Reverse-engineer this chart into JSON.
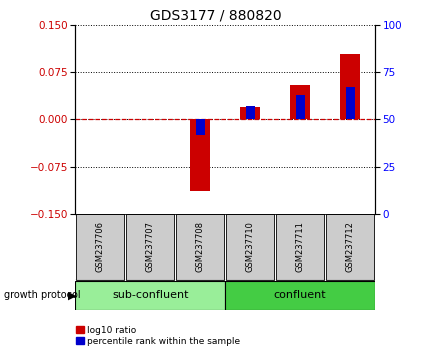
{
  "title": "GDS3177 / 880820",
  "samples": [
    "GSM237706",
    "GSM237707",
    "GSM237708",
    "GSM237710",
    "GSM237711",
    "GSM237712"
  ],
  "log10_ratio": [
    0.0,
    0.0,
    -0.113,
    0.02,
    0.055,
    0.103
  ],
  "percentile_rank": [
    50,
    50,
    42,
    57,
    63,
    67
  ],
  "ylim_left": [
    -0.15,
    0.15
  ],
  "ylim_right": [
    0,
    100
  ],
  "yticks_left": [
    -0.15,
    -0.075,
    0,
    0.075,
    0.15
  ],
  "yticks_right": [
    0,
    25,
    50,
    75,
    100
  ],
  "bar_color_red": "#cc0000",
  "bar_color_blue": "#0000cc",
  "zero_line_color": "#cc0000",
  "grid_color": "#000000",
  "plot_bg": "#ffffff",
  "sub_confluent_color": "#99ee99",
  "confluent_color": "#44cc44",
  "label_bg_color": "#cccccc",
  "bar_width": 0.4,
  "blue_bar_width": 0.18,
  "legend_red_label": "log10 ratio",
  "legend_blue_label": "percentile rank within the sample",
  "growth_protocol_label": "growth protocol"
}
